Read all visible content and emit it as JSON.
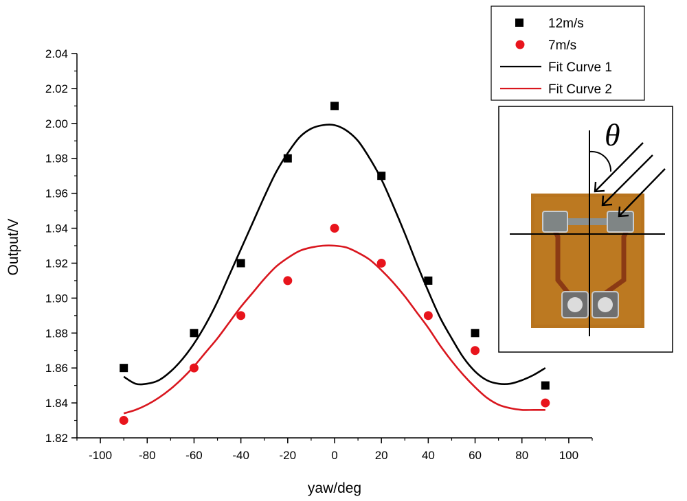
{
  "chart_data": {
    "type": "scatter",
    "title": "",
    "xlabel": "yaw/deg",
    "ylabel": "Output/V",
    "xlim": [
      -110,
      110
    ],
    "ylim": [
      1.82,
      2.04
    ],
    "x_ticks": [
      -100,
      -80,
      -60,
      -40,
      -20,
      0,
      20,
      40,
      60,
      80,
      100
    ],
    "y_ticks": [
      1.82,
      1.84,
      1.86,
      1.88,
      1.9,
      1.92,
      1.94,
      1.96,
      1.98,
      2.0,
      2.02,
      2.04
    ],
    "x_tick_labels": [
      "-100",
      "-80",
      "-60",
      "-40",
      "-20",
      "0",
      "20",
      "40",
      "60",
      "80",
      "100"
    ],
    "y_tick_labels": [
      "1.82",
      "1.84",
      "1.86",
      "1.88",
      "1.90",
      "1.92",
      "1.94",
      "1.96",
      "1.98",
      "2.00",
      "2.02",
      "2.04"
    ],
    "series": [
      {
        "name": "12m/s",
        "marker": "square",
        "color": "#000000",
        "x": [
          -90,
          -60,
          -40,
          -20,
          0,
          20,
          40,
          60,
          90
        ],
        "y": [
          1.86,
          1.88,
          1.92,
          1.98,
          2.01,
          1.97,
          1.91,
          1.88,
          1.85
        ]
      },
      {
        "name": "7m/s",
        "marker": "circle",
        "color": "#e8141c",
        "x": [
          -90,
          -60,
          -40,
          -20,
          0,
          20,
          40,
          60,
          90
        ],
        "y": [
          1.83,
          1.86,
          1.89,
          1.91,
          1.94,
          1.92,
          1.89,
          1.87,
          1.84
        ]
      }
    ],
    "fits": [
      {
        "name": "Fit Curve 1",
        "color": "#000000",
        "x": [
          -90,
          -85,
          -80,
          -75,
          -70,
          -65,
          -60,
          -55,
          -50,
          -45,
          -40,
          -35,
          -30,
          -25,
          -20,
          -15,
          -10,
          -5,
          0,
          5,
          10,
          15,
          20,
          25,
          30,
          35,
          40,
          45,
          50,
          55,
          60,
          65,
          70,
          75,
          80,
          85,
          90
        ],
        "y": [
          1.855,
          1.851,
          1.851,
          1.853,
          1.858,
          1.865,
          1.874,
          1.885,
          1.898,
          1.913,
          1.928,
          1.943,
          1.958,
          1.972,
          1.983,
          1.992,
          1.997,
          1.999,
          1.999,
          1.996,
          1.99,
          1.98,
          1.968,
          1.953,
          1.937,
          1.92,
          1.904,
          1.889,
          1.877,
          1.866,
          1.858,
          1.853,
          1.851,
          1.851,
          1.853,
          1.856,
          1.86
        ]
      },
      {
        "name": "Fit Curve 2",
        "color": "#d9161e",
        "x": [
          -90,
          -85,
          -80,
          -75,
          -70,
          -65,
          -60,
          -55,
          -50,
          -45,
          -40,
          -35,
          -30,
          -25,
          -20,
          -15,
          -10,
          -5,
          0,
          5,
          10,
          15,
          20,
          25,
          30,
          35,
          40,
          45,
          50,
          55,
          60,
          65,
          70,
          75,
          80,
          85,
          90
        ],
        "y": [
          1.834,
          1.836,
          1.839,
          1.843,
          1.848,
          1.854,
          1.861,
          1.869,
          1.877,
          1.886,
          1.895,
          1.903,
          1.911,
          1.918,
          1.923,
          1.927,
          1.929,
          1.93,
          1.93,
          1.929,
          1.926,
          1.922,
          1.916,
          1.909,
          1.901,
          1.892,
          1.883,
          1.873,
          1.864,
          1.856,
          1.849,
          1.843,
          1.839,
          1.837,
          1.836,
          1.836,
          1.836
        ]
      }
    ],
    "legend": {
      "position": "top-right",
      "entries": [
        {
          "label": "12m/s",
          "kind": "square",
          "color": "#000000"
        },
        {
          "label": "7m/s",
          "kind": "circle",
          "color": "#e8141c"
        },
        {
          "label": "Fit Curve 1",
          "kind": "line",
          "color": "#000000"
        },
        {
          "label": "Fit Curve 2",
          "kind": "line",
          "color": "#d9161e"
        }
      ]
    },
    "inset": {
      "symbol": "θ",
      "chip_color": "#b8741e",
      "trace_color": "#8b3a14"
    }
  }
}
